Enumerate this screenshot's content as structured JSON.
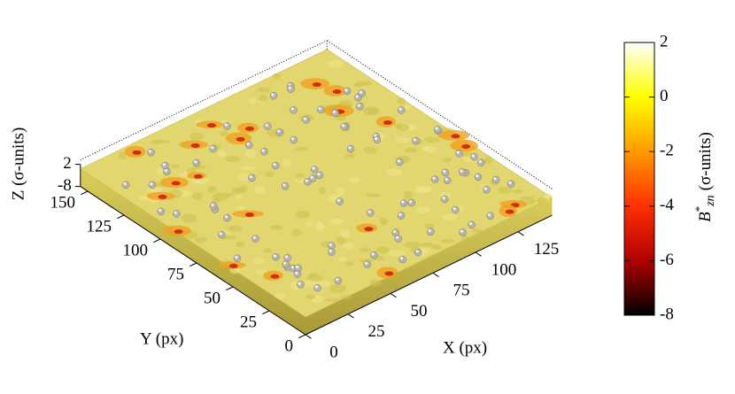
{
  "chart_data": {
    "type": "surface",
    "x_label": "X (px)",
    "y_label": "Y (px)",
    "z_label": "Z (σ-units)",
    "xlim": [
      0,
      145
    ],
    "xticks": [
      0,
      25,
      50,
      75,
      100,
      125
    ],
    "ylim": [
      0,
      155
    ],
    "yticks": [
      0,
      25,
      50,
      75,
      100,
      125,
      150
    ],
    "zlim": [
      -8,
      2
    ],
    "zticks": [
      2,
      -8
    ],
    "colorbar": {
      "label": {
        "base": "B",
        "sup": "*",
        "sub": "zn",
        "unit": "(σ-units)"
      },
      "clim": [
        -8,
        2
      ],
      "ticks": [
        2,
        0,
        -2,
        -4,
        -6,
        -8
      ],
      "colors": [
        "#000000",
        "#b00000",
        "#ff3000",
        "#ff9a00",
        "#ffff00",
        "#ffffff"
      ]
    }
  }
}
